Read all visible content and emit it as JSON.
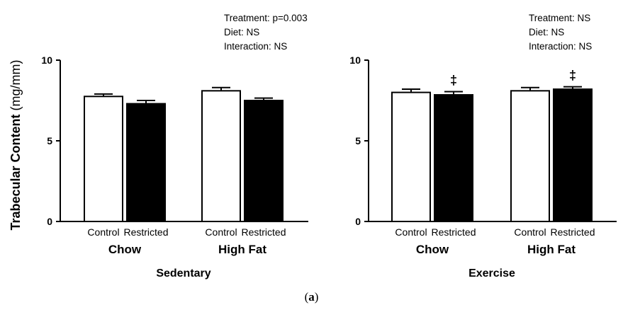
{
  "figure": {
    "y_axis_label_bold": "Trabecular Content",
    "y_axis_label_unit": "(mg/mm)",
    "caption_letter": "a"
  },
  "panels": [
    {
      "group_label": "Sedentary",
      "stats": [
        "Treatment: p=0.003",
        "Diet: NS",
        "Interaction: NS"
      ]
    },
    {
      "group_label": "Exercise",
      "stats": [
        "Treatment: NS",
        "Diet: NS",
        "Interaction: NS"
      ]
    }
  ],
  "colors": {
    "control_fill": "#ffffff",
    "restricted_fill": "#000000",
    "axis": "#000000"
  },
  "chart_data": [
    {
      "type": "bar",
      "group_label": "Sedentary",
      "categories": [
        "Chow",
        "High Fat"
      ],
      "treatments": [
        "Control",
        "Restricted"
      ],
      "series": [
        {
          "name": "Control",
          "values": [
            7.75,
            8.1
          ],
          "errors": [
            0.15,
            0.2
          ]
        },
        {
          "name": "Restricted",
          "values": [
            7.3,
            7.5
          ],
          "errors": [
            0.2,
            0.15
          ]
        }
      ],
      "annotations": [],
      "ylim": [
        0,
        10
      ],
      "yticks": [
        0,
        5,
        10
      ],
      "stats": [
        "Treatment: p=0.003",
        "Diet: NS",
        "Interaction: NS"
      ]
    },
    {
      "type": "bar",
      "group_label": "Exercise",
      "categories": [
        "Chow",
        "High Fat"
      ],
      "treatments": [
        "Control",
        "Restricted"
      ],
      "series": [
        {
          "name": "Control",
          "values": [
            8.0,
            8.1
          ],
          "errors": [
            0.2,
            0.2
          ]
        },
        {
          "name": "Restricted",
          "values": [
            7.85,
            8.2
          ],
          "errors": [
            0.2,
            0.15
          ]
        }
      ],
      "annotations": [
        {
          "category": "Chow",
          "series": "Restricted",
          "symbol": "‡"
        },
        {
          "category": "High Fat",
          "series": "Restricted",
          "symbol": "‡"
        }
      ],
      "ylim": [
        0,
        10
      ],
      "yticks": [
        0,
        5,
        10
      ],
      "stats": [
        "Treatment: NS",
        "Diet: NS",
        "Interaction: NS"
      ]
    }
  ]
}
